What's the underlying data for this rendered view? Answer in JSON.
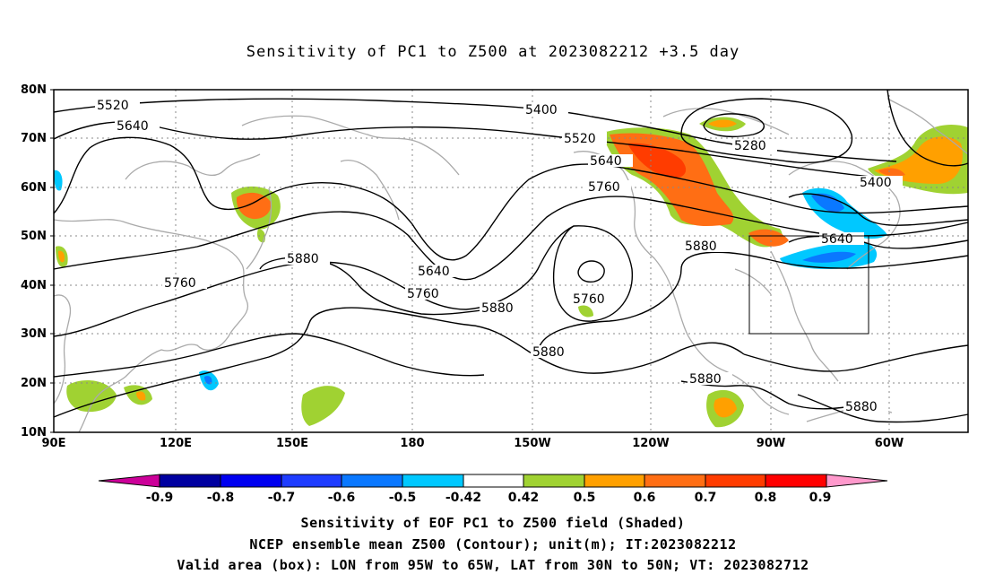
{
  "title": "Sensitivity of PC1 to Z500 at 2023082212 +3.5 day",
  "lat_labels": [
    "80N",
    "70N",
    "60N",
    "50N",
    "40N",
    "30N",
    "20N",
    "10N"
  ],
  "lon_labels": [
    "90E",
    "120E",
    "150E",
    "180",
    "150W",
    "120W",
    "90W",
    "60W"
  ],
  "contour_labels": [
    {
      "text": "5520",
      "id": "c5520-west"
    },
    {
      "text": "5640",
      "id": "c5640-west"
    },
    {
      "text": "5400",
      "id": "c5400-north"
    },
    {
      "text": "5520",
      "id": "c5520-east"
    },
    {
      "text": "5640",
      "id": "c5640-east"
    },
    {
      "text": "5760",
      "id": "c5760-east"
    },
    {
      "text": "5280",
      "id": "c5280"
    },
    {
      "text": "5400",
      "id": "c5400-atl"
    },
    {
      "text": "5640",
      "id": "c5640-atl"
    },
    {
      "text": "5880",
      "id": "c5880-na"
    },
    {
      "text": "5760",
      "id": "c5760-west"
    },
    {
      "text": "5880",
      "id": "c5880-pac"
    },
    {
      "text": "5640",
      "id": "c5640-trough"
    },
    {
      "text": "5760",
      "id": "c5760-trough"
    },
    {
      "text": "5880",
      "id": "c5880-trough"
    },
    {
      "text": "5760",
      "id": "c5760-low"
    },
    {
      "text": "5880",
      "id": "c5880-sw"
    },
    {
      "text": "5880",
      "id": "c5880-mex"
    },
    {
      "text": "5880",
      "id": "c5880-carib"
    }
  ],
  "colorbar": {
    "labels": [
      "-0.9",
      "-0.8",
      "-0.7",
      "-0.6",
      "-0.5",
      "-0.42",
      "0.42",
      "0.5",
      "0.6",
      "0.7",
      "0.8",
      "0.9"
    ],
    "colors": [
      "#cc0099",
      "#0000a0",
      "#0000f0",
      "#1e3cff",
      "#0a78ff",
      "#00c8ff",
      "#ffffff",
      "#a0d232",
      "#ffa000",
      "#ff6e14",
      "#ff3c00",
      "#ff0000",
      "#ff99cc"
    ]
  },
  "captions": [
    "Sensitivity of EOF PC1 to Z500 field (Shaded)",
    "NCEP ensemble mean Z500 (Contour); unit(m); IT:2023082212",
    "Valid area (box): LON from 95W to 65W, LAT from 30N to 50N; VT: 2023082712"
  ],
  "valid_box": {
    "lon": [
      -95,
      -65
    ],
    "lat": [
      30,
      50
    ]
  },
  "colors": {
    "contour": "#000000",
    "coast": "#aaaaaa",
    "grid": "#888888"
  }
}
